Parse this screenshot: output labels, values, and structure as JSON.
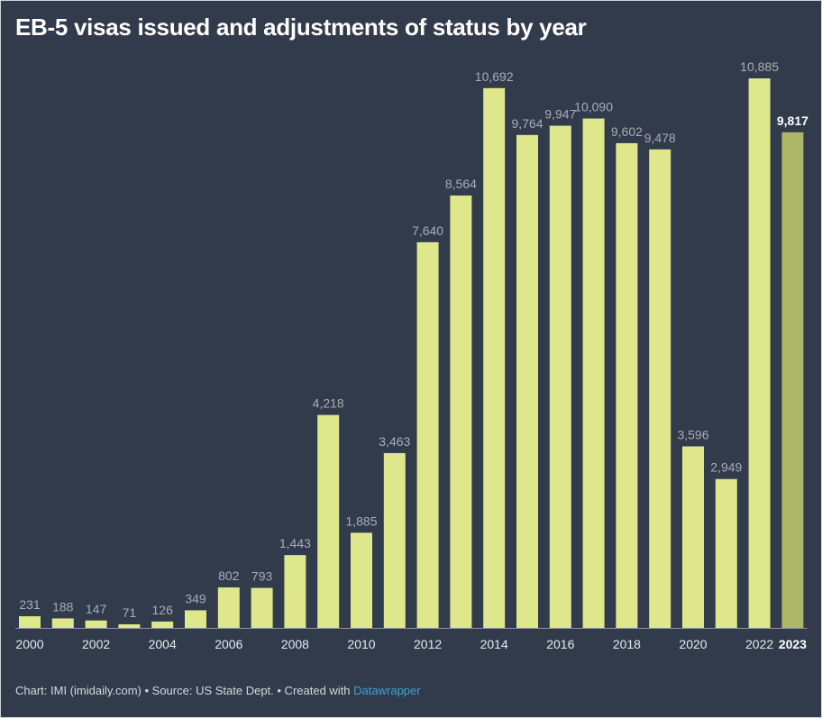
{
  "title": "EB-5 visas issued and adjustments of status by year",
  "footer": {
    "prefix": "Chart: IMI (imidaily.com) • Source: US State Dept. • Created with ",
    "link": "Datawrapper"
  },
  "colors": {
    "background": "#323b4b",
    "bar": "#dfe78c",
    "bar_highlight": "#aeb765"
  },
  "chart_data": {
    "type": "bar",
    "categories": [
      "2000",
      "2001",
      "2002",
      "2003",
      "2004",
      "2005",
      "2006",
      "2007",
      "2008",
      "2009",
      "2010",
      "2011",
      "2012",
      "2013",
      "2014",
      "2015",
      "2016",
      "2017",
      "2018",
      "2019",
      "2020",
      "2021",
      "2022",
      "2023"
    ],
    "values": [
      231,
      188,
      147,
      71,
      126,
      349,
      802,
      793,
      1443,
      4218,
      1885,
      3463,
      7640,
      8564,
      10692,
      9764,
      9947,
      10090,
      9602,
      9478,
      3596,
      2949,
      10885,
      9817
    ],
    "value_labels": [
      "231",
      "188",
      "147",
      "71",
      "126",
      "349",
      "802",
      "793",
      "1,443",
      "4,218",
      "1,885",
      "3,463",
      "7,640",
      "8,564",
      "10,692",
      "9,764",
      "9,947",
      "10,090",
      "9,602",
      "9,478",
      "3,596",
      "2,949",
      "10,885",
      "9,817"
    ],
    "tick_labels": [
      "2000",
      "2002",
      "2004",
      "2006",
      "2008",
      "2010",
      "2012",
      "2014",
      "2016",
      "2018",
      "2020",
      "2022",
      "2023"
    ],
    "highlight": "2023",
    "ylim": [
      0,
      11000
    ],
    "grid": false,
    "legend": "none"
  }
}
